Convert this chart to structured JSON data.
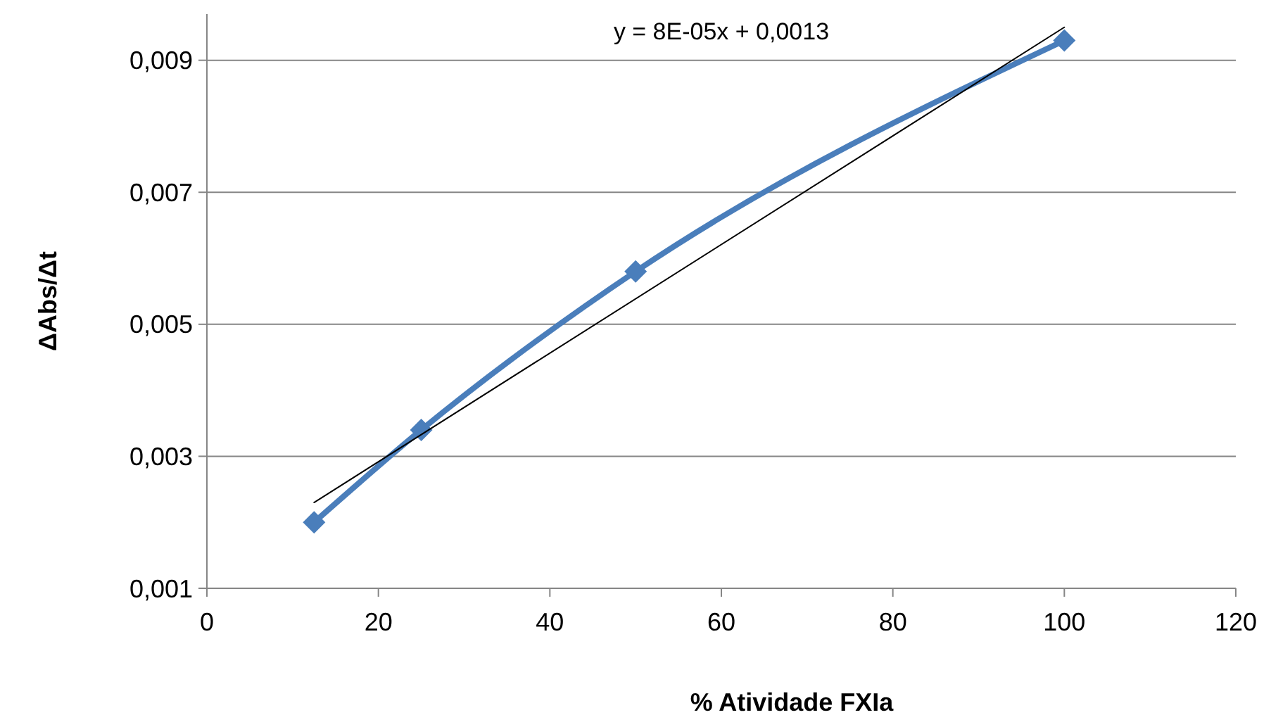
{
  "chart_data": {
    "type": "line",
    "xlabel": "% Atividade FXIa",
    "ylabel": "ΔAbs/Δt",
    "x": [
      12.5,
      25,
      50,
      100
    ],
    "series": [
      {
        "color": "#4a7ebb",
        "values": [
          0.002,
          0.0034,
          0.0058,
          0.0093
        ],
        "marker": "diamond"
      },
      {
        "color": "#000000",
        "x": [
          12.5,
          100
        ],
        "values": [
          0.0023,
          0.0095
        ],
        "marker": "none"
      }
    ],
    "xlim": [
      0,
      120
    ],
    "xticks": [
      0,
      20,
      40,
      60,
      80,
      100,
      120
    ],
    "ylim": [
      0.001,
      0.0097
    ],
    "yticks": [
      {
        "value": 0.001,
        "label": "0,001"
      },
      {
        "value": 0.003,
        "label": "0,003"
      },
      {
        "value": 0.005,
        "label": "0,005"
      },
      {
        "value": 0.007,
        "label": "0,007"
      },
      {
        "value": 0.009,
        "label": "0,009"
      }
    ],
    "grid": "y",
    "annotations": [
      "y = 8E-05x + 0,0013"
    ]
  }
}
